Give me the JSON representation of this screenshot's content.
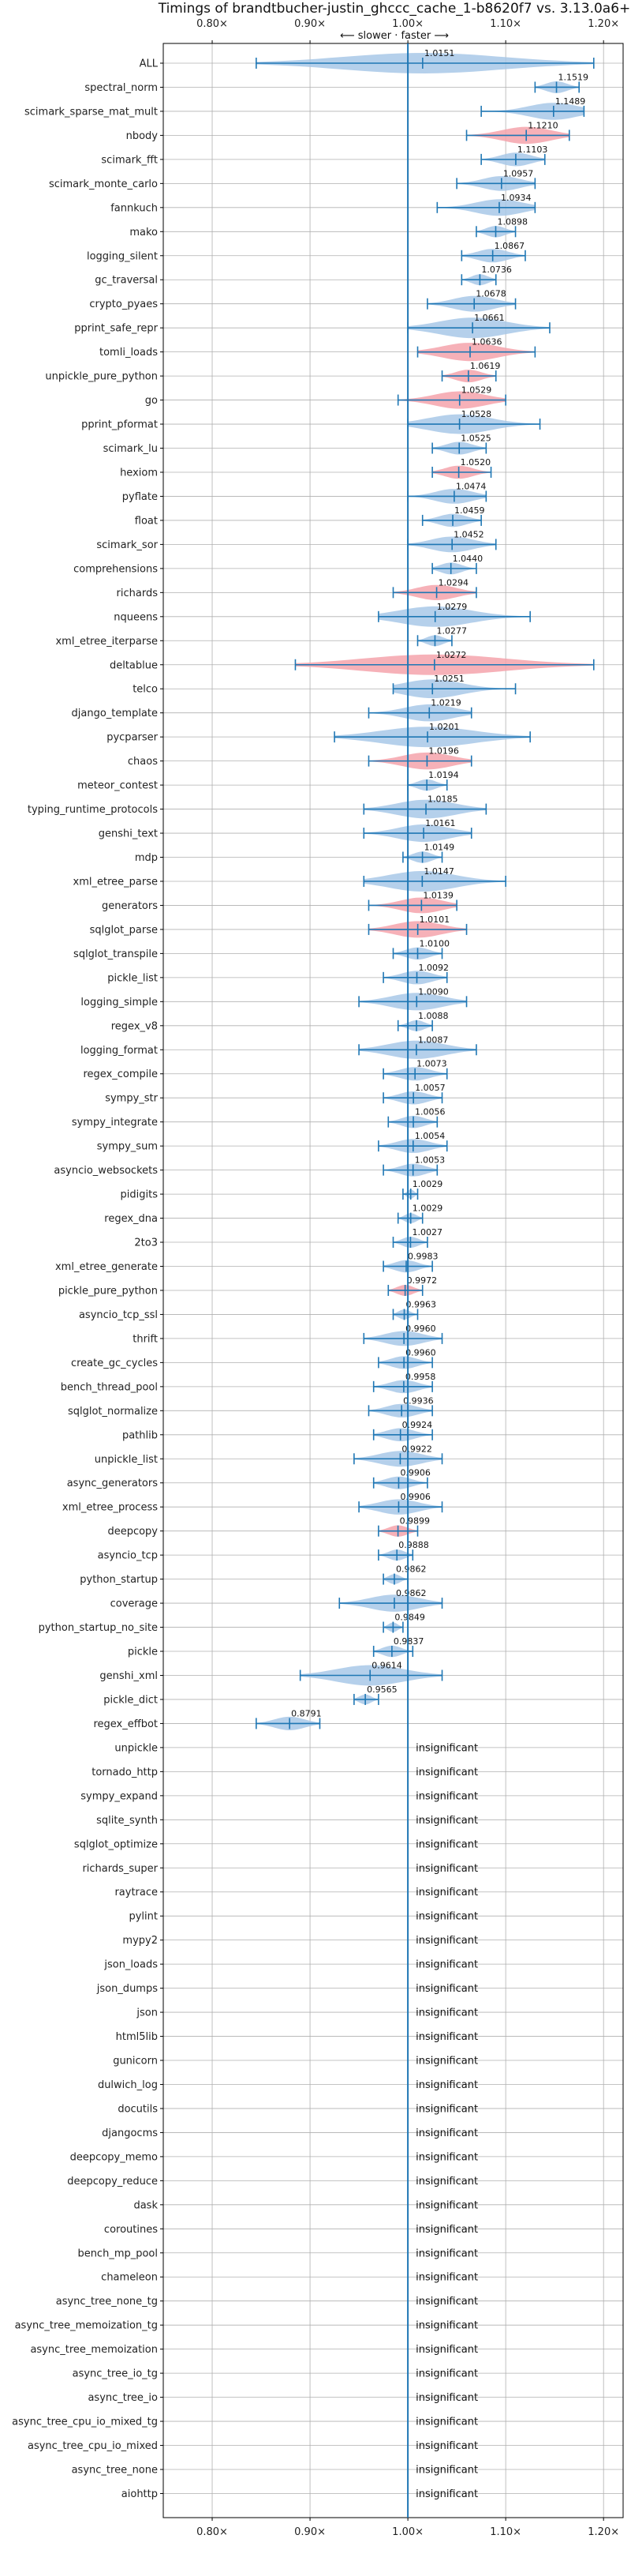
{
  "chart_data": {
    "type": "violin",
    "title": "Timings of brandtbucher-justin_ghccc_cache_1-b8620f7 vs. 3.13.0a6+",
    "subtitle": "⟵ slower · faster ⟶",
    "xlim": [
      0.75,
      1.22
    ],
    "xticks": [
      0.8,
      0.9,
      1.0,
      1.1,
      1.2
    ],
    "xtick_labels": [
      "0.80×",
      "0.90×",
      "1.00×",
      "1.10×",
      "1.20×"
    ],
    "reference": 1.0,
    "grid": true,
    "insignificant_label": "insignificant",
    "colors": {
      "faster": "#a8c8e8",
      "slower": "#f4a3ac",
      "errorbar": "#1f77b4",
      "reference": "#1f77b4",
      "grid": "#b0b0b0"
    },
    "benchmarks": [
      {
        "name": "ALL",
        "value": 1.0151,
        "label": "1.0151",
        "lo": 0.845,
        "hi": 1.19,
        "status": "faster"
      },
      {
        "name": "spectral_norm",
        "value": 1.1519,
        "label": "1.1519",
        "lo": 1.13,
        "hi": 1.175,
        "status": "faster"
      },
      {
        "name": "scimark_sparse_mat_mult",
        "value": 1.1489,
        "label": "1.1489",
        "lo": 1.075,
        "hi": 1.18,
        "status": "faster"
      },
      {
        "name": "nbody",
        "value": 1.121,
        "label": "1.1210",
        "lo": 1.06,
        "hi": 1.165,
        "status": "slower"
      },
      {
        "name": "scimark_fft",
        "value": 1.1103,
        "label": "1.1103",
        "lo": 1.075,
        "hi": 1.14,
        "status": "faster"
      },
      {
        "name": "scimark_monte_carlo",
        "value": 1.0957,
        "label": "1.0957",
        "lo": 1.05,
        "hi": 1.13,
        "status": "faster"
      },
      {
        "name": "fannkuch",
        "value": 1.0934,
        "label": "1.0934",
        "lo": 1.03,
        "hi": 1.13,
        "status": "faster"
      },
      {
        "name": "mako",
        "value": 1.0898,
        "label": "1.0898",
        "lo": 1.07,
        "hi": 1.11,
        "status": "faster"
      },
      {
        "name": "logging_silent",
        "value": 1.0867,
        "label": "1.0867",
        "lo": 1.055,
        "hi": 1.12,
        "status": "faster"
      },
      {
        "name": "gc_traversal",
        "value": 1.0736,
        "label": "1.0736",
        "lo": 1.055,
        "hi": 1.09,
        "status": "faster"
      },
      {
        "name": "crypto_pyaes",
        "value": 1.0678,
        "label": "1.0678",
        "lo": 1.02,
        "hi": 1.11,
        "status": "faster"
      },
      {
        "name": "pprint_safe_repr",
        "value": 1.0661,
        "label": "1.0661",
        "lo": 1.0,
        "hi": 1.145,
        "status": "faster"
      },
      {
        "name": "tomli_loads",
        "value": 1.0636,
        "label": "1.0636",
        "lo": 1.01,
        "hi": 1.13,
        "status": "slower"
      },
      {
        "name": "unpickle_pure_python",
        "value": 1.0619,
        "label": "1.0619",
        "lo": 1.035,
        "hi": 1.09,
        "status": "slower"
      },
      {
        "name": "go",
        "value": 1.0529,
        "label": "1.0529",
        "lo": 0.99,
        "hi": 1.1,
        "status": "slower"
      },
      {
        "name": "pprint_pformat",
        "value": 1.0528,
        "label": "1.0528",
        "lo": 1.0,
        "hi": 1.135,
        "status": "faster"
      },
      {
        "name": "scimark_lu",
        "value": 1.0525,
        "label": "1.0525",
        "lo": 1.025,
        "hi": 1.08,
        "status": "faster"
      },
      {
        "name": "hexiom",
        "value": 1.052,
        "label": "1.0520",
        "lo": 1.025,
        "hi": 1.085,
        "status": "slower"
      },
      {
        "name": "pyflate",
        "value": 1.0474,
        "label": "1.0474",
        "lo": 1.0,
        "hi": 1.08,
        "status": "faster"
      },
      {
        "name": "float",
        "value": 1.0459,
        "label": "1.0459",
        "lo": 1.015,
        "hi": 1.075,
        "status": "faster"
      },
      {
        "name": "scimark_sor",
        "value": 1.0452,
        "label": "1.0452",
        "lo": 1.0,
        "hi": 1.09,
        "status": "faster"
      },
      {
        "name": "comprehensions",
        "value": 1.044,
        "label": "1.0440",
        "lo": 1.025,
        "hi": 1.07,
        "status": "faster"
      },
      {
        "name": "richards",
        "value": 1.0294,
        "label": "1.0294",
        "lo": 0.985,
        "hi": 1.07,
        "status": "slower"
      },
      {
        "name": "nqueens",
        "value": 1.0279,
        "label": "1.0279",
        "lo": 0.97,
        "hi": 1.125,
        "status": "faster"
      },
      {
        "name": "xml_etree_iterparse",
        "value": 1.0277,
        "label": "1.0277",
        "lo": 1.01,
        "hi": 1.045,
        "status": "faster"
      },
      {
        "name": "deltablue",
        "value": 1.0272,
        "label": "1.0272",
        "lo": 0.885,
        "hi": 1.19,
        "status": "slower"
      },
      {
        "name": "telco",
        "value": 1.0251,
        "label": "1.0251",
        "lo": 0.985,
        "hi": 1.11,
        "status": "faster"
      },
      {
        "name": "django_template",
        "value": 1.0219,
        "label": "1.0219",
        "lo": 0.96,
        "hi": 1.065,
        "status": "faster"
      },
      {
        "name": "pycparser",
        "value": 1.0201,
        "label": "1.0201",
        "lo": 0.925,
        "hi": 1.125,
        "status": "faster"
      },
      {
        "name": "chaos",
        "value": 1.0196,
        "label": "1.0196",
        "lo": 0.96,
        "hi": 1.065,
        "status": "slower"
      },
      {
        "name": "meteor_contest",
        "value": 1.0194,
        "label": "1.0194",
        "lo": 1.0,
        "hi": 1.04,
        "status": "faster"
      },
      {
        "name": "typing_runtime_protocols",
        "value": 1.0185,
        "label": "1.0185",
        "lo": 0.955,
        "hi": 1.08,
        "status": "faster"
      },
      {
        "name": "genshi_text",
        "value": 1.0161,
        "label": "1.0161",
        "lo": 0.955,
        "hi": 1.065,
        "status": "faster"
      },
      {
        "name": "mdp",
        "value": 1.0149,
        "label": "1.0149",
        "lo": 0.995,
        "hi": 1.035,
        "status": "faster"
      },
      {
        "name": "xml_etree_parse",
        "value": 1.0147,
        "label": "1.0147",
        "lo": 0.955,
        "hi": 1.1,
        "status": "faster"
      },
      {
        "name": "generators",
        "value": 1.0139,
        "label": "1.0139",
        "lo": 0.96,
        "hi": 1.05,
        "status": "slower"
      },
      {
        "name": "sqlglot_parse",
        "value": 1.0101,
        "label": "1.0101",
        "lo": 0.96,
        "hi": 1.06,
        "status": "slower"
      },
      {
        "name": "sqlglot_transpile",
        "value": 1.01,
        "label": "1.0100",
        "lo": 0.985,
        "hi": 1.035,
        "status": "faster"
      },
      {
        "name": "pickle_list",
        "value": 1.0092,
        "label": "1.0092",
        "lo": 0.975,
        "hi": 1.04,
        "status": "faster"
      },
      {
        "name": "logging_simple",
        "value": 1.009,
        "label": "1.0090",
        "lo": 0.95,
        "hi": 1.06,
        "status": "faster"
      },
      {
        "name": "regex_v8",
        "value": 1.0088,
        "label": "1.0088",
        "lo": 0.99,
        "hi": 1.025,
        "status": "faster"
      },
      {
        "name": "logging_format",
        "value": 1.0087,
        "label": "1.0087",
        "lo": 0.95,
        "hi": 1.07,
        "status": "faster"
      },
      {
        "name": "regex_compile",
        "value": 1.0073,
        "label": "1.0073",
        "lo": 0.975,
        "hi": 1.04,
        "status": "faster"
      },
      {
        "name": "sympy_str",
        "value": 1.0057,
        "label": "1.0057",
        "lo": 0.975,
        "hi": 1.035,
        "status": "faster"
      },
      {
        "name": "sympy_integrate",
        "value": 1.0056,
        "label": "1.0056",
        "lo": 0.98,
        "hi": 1.03,
        "status": "faster"
      },
      {
        "name": "sympy_sum",
        "value": 1.0054,
        "label": "1.0054",
        "lo": 0.97,
        "hi": 1.04,
        "status": "faster"
      },
      {
        "name": "asyncio_websockets",
        "value": 1.0053,
        "label": "1.0053",
        "lo": 0.975,
        "hi": 1.03,
        "status": "faster"
      },
      {
        "name": "pidigits",
        "value": 1.0029,
        "label": "1.0029",
        "lo": 0.995,
        "hi": 1.01,
        "status": "faster"
      },
      {
        "name": "regex_dna",
        "value": 1.0029,
        "label": "1.0029",
        "lo": 0.99,
        "hi": 1.015,
        "status": "faster"
      },
      {
        "name": "2to3",
        "value": 1.0027,
        "label": "1.0027",
        "lo": 0.985,
        "hi": 1.02,
        "status": "faster"
      },
      {
        "name": "xml_etree_generate",
        "value": 0.9983,
        "label": "0.9983",
        "lo": 0.975,
        "hi": 1.025,
        "status": "faster"
      },
      {
        "name": "pickle_pure_python",
        "value": 0.9972,
        "label": "0.9972",
        "lo": 0.98,
        "hi": 1.015,
        "status": "slower"
      },
      {
        "name": "asyncio_tcp_ssl",
        "value": 0.9963,
        "label": "0.9963",
        "lo": 0.985,
        "hi": 1.01,
        "status": "faster"
      },
      {
        "name": "thrift",
        "value": 0.996,
        "label": "0.9960",
        "lo": 0.955,
        "hi": 1.035,
        "status": "faster"
      },
      {
        "name": "create_gc_cycles",
        "value": 0.996,
        "label": "0.9960",
        "lo": 0.97,
        "hi": 1.025,
        "status": "faster"
      },
      {
        "name": "bench_thread_pool",
        "value": 0.9958,
        "label": "0.9958",
        "lo": 0.965,
        "hi": 1.025,
        "status": "faster"
      },
      {
        "name": "sqlglot_normalize",
        "value": 0.9936,
        "label": "0.9936",
        "lo": 0.96,
        "hi": 1.025,
        "status": "faster"
      },
      {
        "name": "pathlib",
        "value": 0.9924,
        "label": "0.9924",
        "lo": 0.965,
        "hi": 1.025,
        "status": "faster"
      },
      {
        "name": "unpickle_list",
        "value": 0.9922,
        "label": "0.9922",
        "lo": 0.945,
        "hi": 1.035,
        "status": "faster"
      },
      {
        "name": "async_generators",
        "value": 0.9906,
        "label": "0.9906",
        "lo": 0.965,
        "hi": 1.02,
        "status": "faster"
      },
      {
        "name": "xml_etree_process",
        "value": 0.9906,
        "label": "0.9906",
        "lo": 0.95,
        "hi": 1.035,
        "status": "faster"
      },
      {
        "name": "deepcopy",
        "value": 0.9899,
        "label": "0.9899",
        "lo": 0.97,
        "hi": 1.01,
        "status": "slower"
      },
      {
        "name": "asyncio_tcp",
        "value": 0.9888,
        "label": "0.9888",
        "lo": 0.97,
        "hi": 1.005,
        "status": "faster"
      },
      {
        "name": "python_startup",
        "value": 0.9862,
        "label": "0.9862",
        "lo": 0.975,
        "hi": 1.0,
        "status": "faster"
      },
      {
        "name": "coverage",
        "value": 0.9862,
        "label": "0.9862",
        "lo": 0.93,
        "hi": 1.035,
        "status": "faster"
      },
      {
        "name": "python_startup_no_site",
        "value": 0.9849,
        "label": "0.9849",
        "lo": 0.975,
        "hi": 0.995,
        "status": "faster"
      },
      {
        "name": "pickle",
        "value": 0.9837,
        "label": "0.9837",
        "lo": 0.965,
        "hi": 1.005,
        "status": "faster"
      },
      {
        "name": "genshi_xml",
        "value": 0.9614,
        "label": "0.9614",
        "lo": 0.89,
        "hi": 1.035,
        "status": "faster"
      },
      {
        "name": "pickle_dict",
        "value": 0.9565,
        "label": "0.9565",
        "lo": 0.945,
        "hi": 0.97,
        "status": "faster"
      },
      {
        "name": "regex_effbot",
        "value": 0.8791,
        "label": "0.8791",
        "lo": 0.845,
        "hi": 0.91,
        "status": "faster"
      },
      {
        "name": "unpickle",
        "status": "insignificant"
      },
      {
        "name": "tornado_http",
        "status": "insignificant"
      },
      {
        "name": "sympy_expand",
        "status": "insignificant"
      },
      {
        "name": "sqlite_synth",
        "status": "insignificant"
      },
      {
        "name": "sqlglot_optimize",
        "status": "insignificant"
      },
      {
        "name": "richards_super",
        "status": "insignificant"
      },
      {
        "name": "raytrace",
        "status": "insignificant"
      },
      {
        "name": "pylint",
        "status": "insignificant"
      },
      {
        "name": "mypy2",
        "status": "insignificant"
      },
      {
        "name": "json_loads",
        "status": "insignificant"
      },
      {
        "name": "json_dumps",
        "status": "insignificant"
      },
      {
        "name": "json",
        "status": "insignificant"
      },
      {
        "name": "html5lib",
        "status": "insignificant"
      },
      {
        "name": "gunicorn",
        "status": "insignificant"
      },
      {
        "name": "dulwich_log",
        "status": "insignificant"
      },
      {
        "name": "docutils",
        "status": "insignificant"
      },
      {
        "name": "djangocms",
        "status": "insignificant"
      },
      {
        "name": "deepcopy_memo",
        "status": "insignificant"
      },
      {
        "name": "deepcopy_reduce",
        "status": "insignificant"
      },
      {
        "name": "dask",
        "status": "insignificant"
      },
      {
        "name": "coroutines",
        "status": "insignificant"
      },
      {
        "name": "bench_mp_pool",
        "status": "insignificant"
      },
      {
        "name": "chameleon",
        "status": "insignificant"
      },
      {
        "name": "async_tree_none_tg",
        "status": "insignificant"
      },
      {
        "name": "async_tree_memoization_tg",
        "status": "insignificant"
      },
      {
        "name": "async_tree_memoization",
        "status": "insignificant"
      },
      {
        "name": "async_tree_io_tg",
        "status": "insignificant"
      },
      {
        "name": "async_tree_io",
        "status": "insignificant"
      },
      {
        "name": "async_tree_cpu_io_mixed_tg",
        "status": "insignificant"
      },
      {
        "name": "async_tree_cpu_io_mixed",
        "status": "insignificant"
      },
      {
        "name": "async_tree_none",
        "status": "insignificant"
      },
      {
        "name": "aiohttp",
        "status": "insignificant"
      }
    ]
  }
}
